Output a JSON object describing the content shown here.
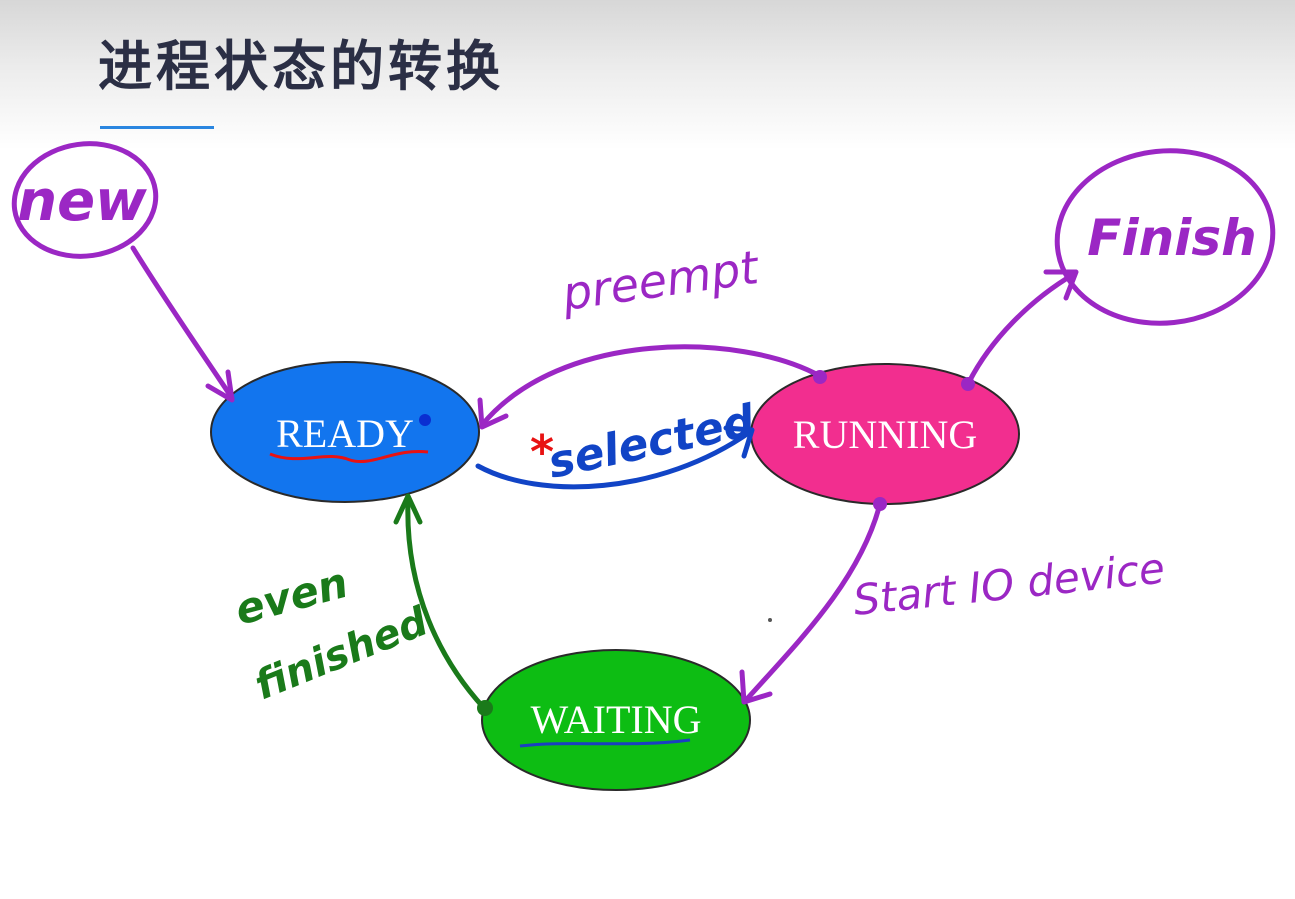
{
  "slide": {
    "title": "进程状态的转换"
  },
  "diagram": {
    "states": {
      "new": {
        "label": "new",
        "stroke": "#9b27c4"
      },
      "finish": {
        "label": "Finish",
        "stroke": "#9b27c4"
      },
      "ready": {
        "label": "READY",
        "fill": "#1275ee"
      },
      "running": {
        "label": "RUNNING",
        "fill": "#f22e8f"
      },
      "waiting": {
        "label": "WAITING",
        "fill": "#0dbd13"
      }
    },
    "transitions": {
      "preempt": {
        "label": "preempt",
        "color": "#9b27c4"
      },
      "selected": {
        "label": "selected",
        "color": "#1144c6"
      },
      "start_io": {
        "label": "Start IO device",
        "color": "#9b27c4"
      },
      "event_line1": {
        "label": "even",
        "color": "#1a7a1a"
      },
      "event_line2": {
        "label": "finished",
        "color": "#1a7a1a"
      }
    },
    "marks": {
      "star": "*"
    }
  }
}
